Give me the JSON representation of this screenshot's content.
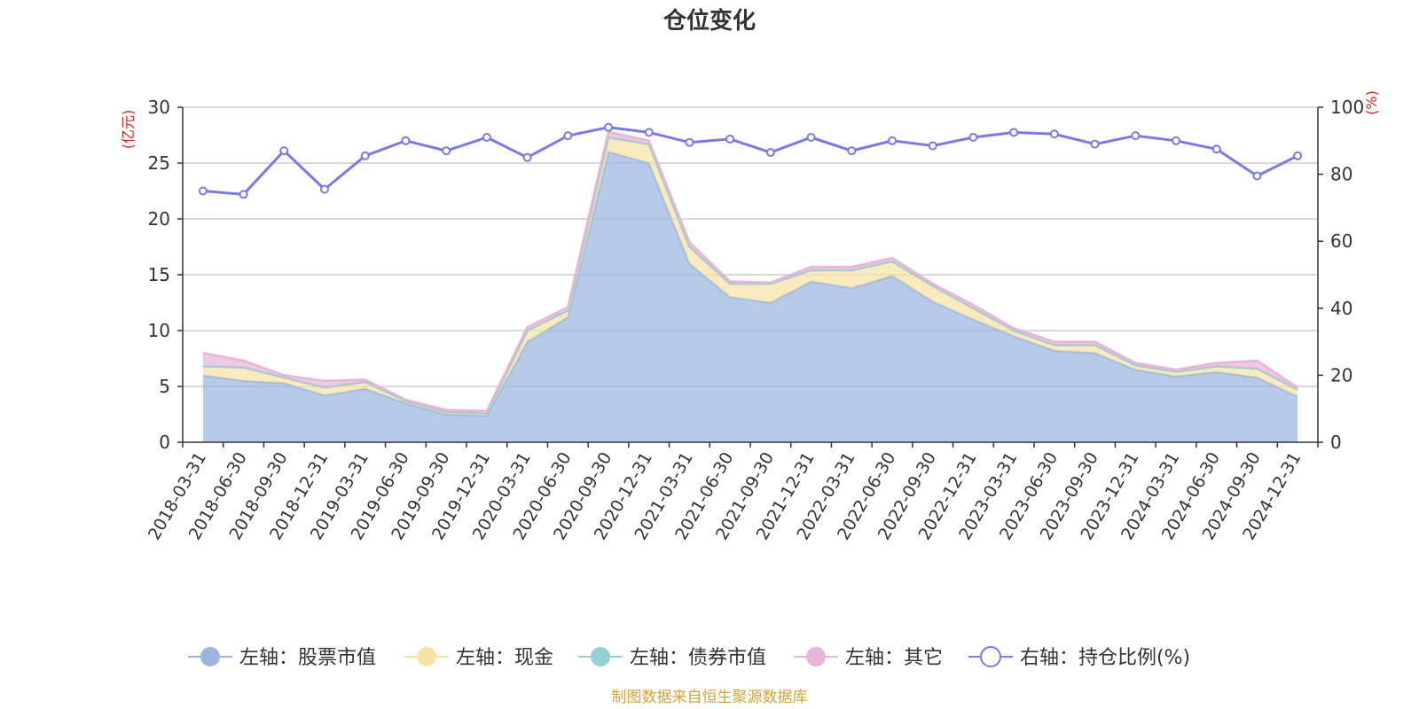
{
  "chart_data": {
    "type": "area",
    "title": "仓位变化",
    "left_axis": {
      "unit": "(亿元)",
      "ylim": [
        0,
        30
      ],
      "ticks": [
        "0",
        "5",
        "10",
        "15",
        "20",
        "25",
        "30"
      ]
    },
    "right_axis": {
      "unit": "(%)",
      "ylim": [
        0,
        100
      ],
      "ticks": [
        "0",
        "20",
        "40",
        "60",
        "80",
        "100"
      ]
    },
    "categories": [
      "2018-03-31",
      "2018-06-30",
      "2018-09-30",
      "2018-12-31",
      "2019-03-31",
      "2019-06-30",
      "2019-09-30",
      "2019-12-31",
      "2020-03-31",
      "2020-06-30",
      "2020-09-30",
      "2020-12-31",
      "2021-03-31",
      "2021-06-30",
      "2021-09-30",
      "2021-12-31",
      "2022-03-31",
      "2022-06-30",
      "2022-09-30",
      "2022-12-31",
      "2023-03-31",
      "2023-06-30",
      "2023-09-30",
      "2023-12-31",
      "2024-03-31",
      "2024-06-30",
      "2024-09-30",
      "2024-12-31"
    ],
    "series": [
      {
        "name": "左轴：股票市值",
        "axis": "left",
        "color": "#9ab6e0",
        "values": [
          6.0,
          5.5,
          5.3,
          4.2,
          4.8,
          3.5,
          2.5,
          2.4,
          9.0,
          11.2,
          26.0,
          25.0,
          16.0,
          13.0,
          12.5,
          14.4,
          13.8,
          14.9,
          12.6,
          11.0,
          9.5,
          8.2,
          8.0,
          6.5,
          5.9,
          6.3,
          5.8,
          4.1
        ]
      },
      {
        "name": "左轴：现金",
        "axis": "left",
        "color": "#f7e3a3",
        "values": [
          0.8,
          1.2,
          0.5,
          0.7,
          0.6,
          0.2,
          0.2,
          0.2,
          1.0,
          0.6,
          1.3,
          1.7,
          1.5,
          1.2,
          1.7,
          1.0,
          1.6,
          1.3,
          1.4,
          1.0,
          0.5,
          0.5,
          0.7,
          0.4,
          0.4,
          0.5,
          0.8,
          0.6
        ]
      },
      {
        "name": "左轴：债券市值",
        "axis": "left",
        "color": "#92d2d2",
        "values": [
          0,
          0,
          0,
          0,
          0,
          0,
          0,
          0,
          0,
          0,
          0,
          0,
          0,
          0,
          0,
          0,
          0,
          0,
          0,
          0,
          0,
          0,
          0,
          0,
          0,
          0,
          0,
          0
        ]
      },
      {
        "name": "左轴：其它",
        "axis": "left",
        "color": "#e8b4d8",
        "values": [
          1.2,
          0.6,
          0.2,
          0.6,
          0.2,
          0.1,
          0.2,
          0.2,
          0.3,
          0.3,
          0.5,
          0.3,
          0.4,
          0.2,
          0.1,
          0.3,
          0.3,
          0.3,
          0.2,
          0.3,
          0.2,
          0.3,
          0.3,
          0.2,
          0.2,
          0.3,
          0.7,
          0.2
        ]
      },
      {
        "name": "右轴：持仓比例(%)",
        "axis": "right",
        "color": "#7a7aea",
        "values": [
          75,
          74,
          87,
          75.5,
          85.5,
          90,
          87,
          91,
          85,
          91.5,
          94,
          92.5,
          89.5,
          90.5,
          86.5,
          91,
          87,
          90,
          88.5,
          91,
          92.5,
          92,
          89,
          91.5,
          90,
          87.5,
          79.5,
          85.5
        ]
      }
    ],
    "legend_position": "bottom",
    "grid": true
  },
  "source_note": "制图数据来自恒生聚源数据库"
}
